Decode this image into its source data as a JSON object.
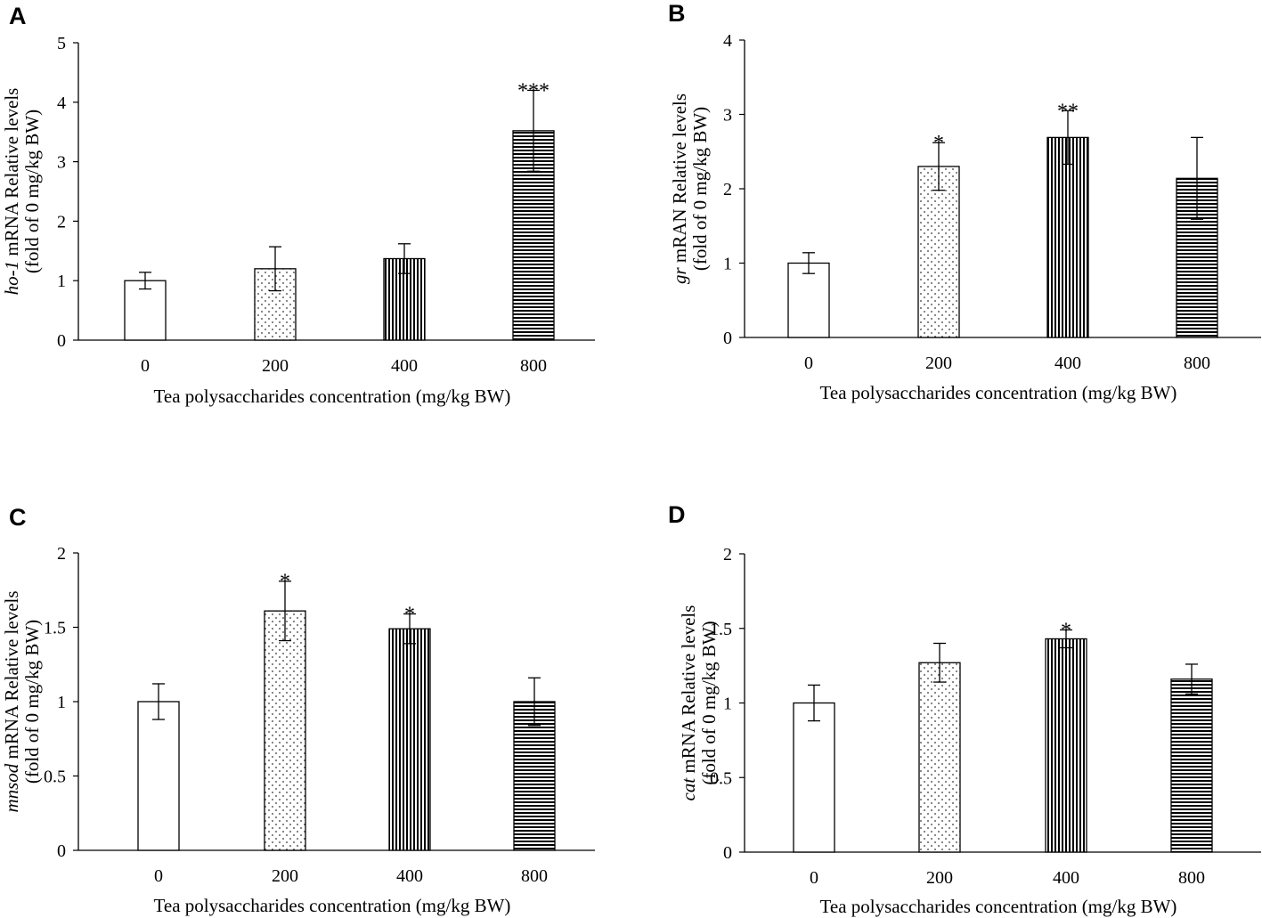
{
  "chart_data": [
    {
      "panel": "A",
      "type": "bar",
      "categories": [
        "0",
        "200",
        "400",
        "800"
      ],
      "values": [
        1.0,
        1.2,
        1.37,
        3.52
      ],
      "errors": [
        0.14,
        0.37,
        0.25,
        0.68
      ],
      "annotations": [
        "",
        "",
        "",
        "***"
      ],
      "patterns": [
        "none",
        "dots",
        "vlines",
        "hlines"
      ],
      "ylim": [
        0,
        5
      ],
      "yticks": [
        0,
        1,
        2,
        3,
        4,
        5
      ],
      "ylabel_gene": "ho-1",
      "ylabel_rest": " mRNA Relative levels",
      "ylabel_line2": "(fold of 0 mg/kg BW)",
      "xlabel": "Tea polysaccharides concentration (mg/kg BW)"
    },
    {
      "panel": "B",
      "type": "bar",
      "categories": [
        "0",
        "200",
        "400",
        "800"
      ],
      "values": [
        1.0,
        2.3,
        2.69,
        2.14
      ],
      "errors": [
        0.14,
        0.32,
        0.36,
        0.55
      ],
      "annotations": [
        "",
        "*",
        "**",
        ""
      ],
      "patterns": [
        "none",
        "dots",
        "vlines",
        "hlines"
      ],
      "ylim": [
        0,
        4
      ],
      "yticks": [
        0,
        1,
        2,
        3,
        4
      ],
      "ylabel_gene": "gr",
      "ylabel_rest": " mRAN Relative levels",
      "ylabel_line2": "(fold of 0 mg/kg BW)",
      "xlabel": "Tea polysaccharides concentration (mg/kg BW)"
    },
    {
      "panel": "C",
      "type": "bar",
      "categories": [
        "0",
        "200",
        "400",
        "800"
      ],
      "values": [
        1.0,
        1.61,
        1.49,
        1.0
      ],
      "errors": [
        0.12,
        0.2,
        0.1,
        0.16
      ],
      "annotations": [
        "",
        "*",
        "*",
        ""
      ],
      "patterns": [
        "none",
        "dots",
        "vlines",
        "hlines"
      ],
      "ylim": [
        0,
        2
      ],
      "yticks": [
        0,
        0.5,
        1,
        1.5,
        2
      ],
      "ylabel_gene": "mnsod",
      "ylabel_rest": " mRNA Relative levels",
      "ylabel_line2": "(fold of 0 mg/kg BW)",
      "xlabel": "Tea polysaccharides concentration (mg/kg BW)"
    },
    {
      "panel": "D",
      "type": "bar",
      "categories": [
        "0",
        "200",
        "400",
        "800"
      ],
      "values": [
        1.0,
        1.27,
        1.43,
        1.16
      ],
      "errors": [
        0.12,
        0.13,
        0.06,
        0.1
      ],
      "annotations": [
        "",
        "",
        "*",
        ""
      ],
      "patterns": [
        "none",
        "dots",
        "vlines",
        "hlines"
      ],
      "ylim": [
        0,
        2
      ],
      "yticks": [
        0,
        0.5,
        1,
        1.5,
        2
      ],
      "ylabel_gene": "cat",
      "ylabel_rest": " mRNA Relative levels",
      "ylabel_line2": "(fold of 0 mg/kg BW)",
      "xlabel": "Tea polysaccharides concentration (mg/kg BW)"
    }
  ]
}
